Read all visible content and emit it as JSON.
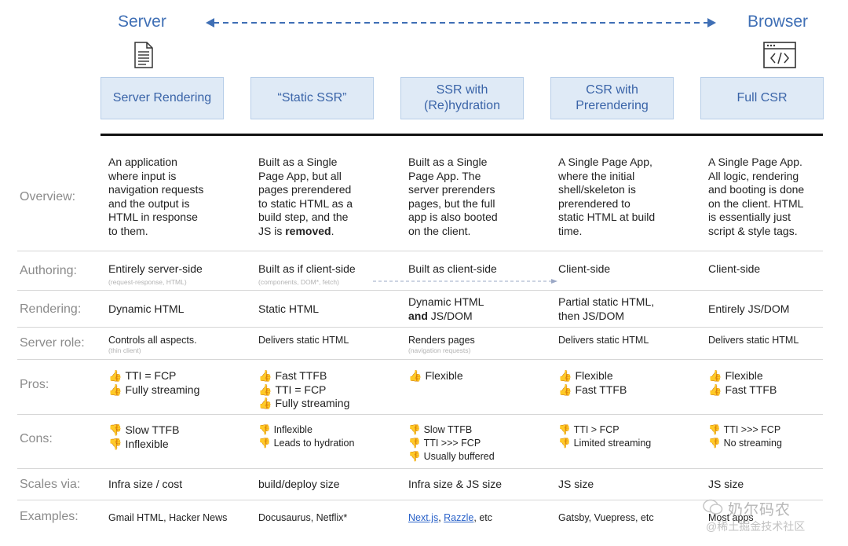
{
  "ends": {
    "server": "Server",
    "browser": "Browser"
  },
  "columns": [
    {
      "title": "Server Rendering"
    },
    {
      "title": "“Static SSR”"
    },
    {
      "title": "SSR with\n(Re)hydration"
    },
    {
      "title": "CSR with\nPrerendering"
    },
    {
      "title": "Full CSR"
    }
  ],
  "row_labels": {
    "overview": "Overview:",
    "authoring": "Authoring:",
    "rendering": "Rendering:",
    "server_role": "Server role:",
    "pros": "Pros:",
    "cons": "Cons:",
    "scales": "Scales via:",
    "examples": "Examples:"
  },
  "overview": {
    "c0": "An application\nwhere input is\nnavigation requests\nand the output is\nHTML in response\nto them.",
    "c1_pre": "Built as a Single\nPage App, but all\npages prerendered\nto static HTML as a\nbuild step, and the\nJS is ",
    "c1_bold": "removed",
    "c1_post": ".",
    "c2": "Built as a Single\nPage App. The\nserver prerenders\npages, but the full\napp is also booted\non the client.",
    "c3": "A Single Page App,\nwhere the initial\nshell/skeleton is\nprerendered to\nstatic HTML at build\ntime.",
    "c4": "A Single Page App.\nAll logic, rendering\nand booting is done\non the client. HTML\nis essentially just\nscript & style tags."
  },
  "authoring": {
    "c0": "Entirely server-side",
    "c0_sub": "(request-response, HTML)",
    "c1": "Built as if client-side",
    "c1_sub": "(components, DOM*, fetch)",
    "c2": "Built as client-side",
    "c3": "Client-side",
    "c4": "Client-side"
  },
  "rendering": {
    "c0": "Dynamic HTML",
    "c1": "Static HTML",
    "c2_line1": "Dynamic HTML",
    "c2_bold": "and",
    "c2_line2": " JS/DOM",
    "c3": "Partial static HTML,\nthen JS/DOM",
    "c4": "Entirely JS/DOM"
  },
  "server_role": {
    "c0": "Controls all aspects.",
    "c0_sub": "(thin client)",
    "c1": "Delivers static HTML",
    "c2": "Renders pages",
    "c2_sub": "(navigation requests)",
    "c3": "Delivers static HTML",
    "c4": "Delivers static HTML"
  },
  "pros": {
    "c0": [
      "TTI = FCP",
      "Fully streaming"
    ],
    "c1": [
      "Fast TTFB",
      "TTI = FCP",
      "Fully streaming"
    ],
    "c2": [
      "Flexible"
    ],
    "c3": [
      "Flexible",
      "Fast TTFB"
    ],
    "c4": [
      "Flexible",
      "Fast TTFB"
    ]
  },
  "cons": {
    "c0": [
      "Slow TTFB",
      "Inflexible"
    ],
    "c1": [
      "Inflexible",
      "Leads to hydration"
    ],
    "c2": [
      "Slow TTFB",
      "TTI >>> FCP",
      "Usually buffered"
    ],
    "c3": [
      "TTI > FCP",
      "Limited streaming"
    ],
    "c4": [
      "TTI >>> FCP",
      "No streaming"
    ]
  },
  "scales": {
    "c0": "Infra size / cost",
    "c1": "build/deploy size",
    "c2": "Infra size & JS size",
    "c3": "JS size",
    "c4": "JS size"
  },
  "examples": {
    "c0": "Gmail HTML, Hacker News",
    "c1": "Docusaurus, Netflix*",
    "c2_link1": "Next.js",
    "c2_sep": ", ",
    "c2_link2": "Razzle",
    "c2_tail": ", etc",
    "c3": "Gatsby, Vuepress, etc",
    "c4": "Most apps"
  },
  "icons": {
    "thumbs_up": "👍",
    "thumbs_down": "👎"
  },
  "watermark": {
    "line1": "奶尔码农",
    "line2": "@稀土掘金技术社区"
  },
  "colors": {
    "accent": "#3f6fb5",
    "box_fill": "#dfeaf6",
    "label_gray": "#8b8b8b"
  }
}
